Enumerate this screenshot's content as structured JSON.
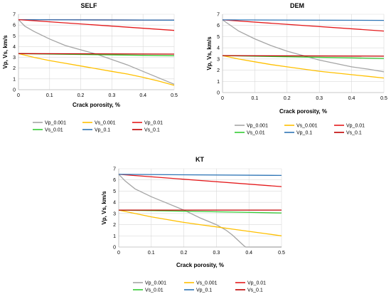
{
  "chart_data": [
    {
      "type": "line",
      "title": "SELF",
      "xlabel": "Crack porosity, %",
      "ylabel": "Vp, Vs, km/s",
      "xlim": [
        0,
        0.5
      ],
      "ylim": [
        0,
        7
      ],
      "xticks": [
        "0",
        "0.1",
        "0.2",
        "0.3",
        "0.4",
        "0.5"
      ],
      "yticks": [
        "0",
        "1",
        "2",
        "3",
        "4",
        "5",
        "6",
        "7"
      ],
      "grid": true,
      "legend": {
        "placement": "bottom",
        "columns": 3
      },
      "series": [
        {
          "name": "Vp_0.001",
          "color": "#a5a5a5",
          "x": [
            0,
            0.02,
            0.05,
            0.1,
            0.15,
            0.2,
            0.25,
            0.3,
            0.35,
            0.4,
            0.45,
            0.5
          ],
          "y": [
            6.5,
            5.9,
            5.4,
            4.7,
            4.1,
            3.7,
            3.3,
            2.8,
            2.3,
            1.7,
            1.1,
            0.5
          ]
        },
        {
          "name": "Vs_0.001",
          "color": "#ffc000",
          "x": [
            0,
            0.05,
            0.1,
            0.15,
            0.2,
            0.25,
            0.3,
            0.35,
            0.4,
            0.45,
            0.5
          ],
          "y": [
            3.35,
            3.0,
            2.7,
            2.45,
            2.2,
            1.95,
            1.7,
            1.45,
            1.15,
            0.8,
            0.4
          ]
        },
        {
          "name": "Vp_0.01",
          "color": "#e41a1c",
          "x": [
            0,
            0.5
          ],
          "y": [
            6.5,
            6.45
          ]
        },
        {
          "name": "Vs_0.01",
          "color": "#33cc33",
          "x": [
            0,
            0.5
          ],
          "y": [
            3.35,
            3.15
          ]
        },
        {
          "name": "Vp_0.1",
          "color": "#2e75b6",
          "x": [
            0,
            0.5
          ],
          "y": [
            6.5,
            6.45
          ]
        },
        {
          "name": "Vs_0.1",
          "color": "#c00000",
          "x": [
            0,
            0.5
          ],
          "y": [
            3.35,
            3.3
          ]
        },
        {
          "name": "",
          "color": "#e41a1c",
          "x": [
            0,
            0.5
          ],
          "y": [
            6.5,
            5.5
          ]
        }
      ]
    },
    {
      "type": "line",
      "title": "DEM",
      "xlabel": "Crack porosity, %",
      "ylabel": "Vp, Vs, km/s",
      "xlim": [
        0,
        0.5
      ],
      "ylim": [
        0,
        7
      ],
      "xticks": [
        "0",
        "0.1",
        "0.2",
        "0.3",
        "0.4",
        "0.5"
      ],
      "yticks": [
        "0",
        "1",
        "2",
        "3",
        "4",
        "5",
        "6",
        "7"
      ],
      "grid": true,
      "legend": {
        "placement": "bottom",
        "columns": 3
      },
      "series": [
        {
          "name": "Vp_0.001",
          "color": "#a5a5a5",
          "x": [
            0,
            0.05,
            0.1,
            0.15,
            0.2,
            0.25,
            0.3,
            0.35,
            0.4,
            0.45,
            0.5
          ],
          "y": [
            6.5,
            5.5,
            4.8,
            4.2,
            3.7,
            3.3,
            2.9,
            2.6,
            2.3,
            2.1,
            1.85
          ]
        },
        {
          "name": "Vs_0.001",
          "color": "#ffc000",
          "x": [
            0,
            0.05,
            0.1,
            0.15,
            0.2,
            0.25,
            0.3,
            0.35,
            0.4,
            0.45,
            0.5
          ],
          "y": [
            3.3,
            3.0,
            2.75,
            2.5,
            2.3,
            2.1,
            1.9,
            1.75,
            1.6,
            1.45,
            1.3
          ]
        },
        {
          "name": "Vp_0.01",
          "color": "#e41a1c",
          "x": [
            0,
            0.5
          ],
          "y": [
            6.5,
            5.5
          ]
        },
        {
          "name": "Vs_0.01",
          "color": "#33cc33",
          "x": [
            0,
            0.5
          ],
          "y": [
            3.3,
            3.05
          ]
        },
        {
          "name": "Vp_0.1",
          "color": "#2e75b6",
          "x": [
            0,
            0.5
          ],
          "y": [
            6.5,
            6.45
          ]
        },
        {
          "name": "Vs_0.1",
          "color": "#c00000",
          "x": [
            0,
            0.5
          ],
          "y": [
            3.3,
            3.25
          ]
        }
      ]
    },
    {
      "type": "line",
      "title": "KT",
      "xlabel": "Crack porosity, %",
      "ylabel": "Vp, Vs, km/s",
      "xlim": [
        0,
        0.5
      ],
      "ylim": [
        0,
        7
      ],
      "xticks": [
        "0",
        "0.1",
        "0.2",
        "0.3",
        "0.4",
        "0.5"
      ],
      "yticks": [
        "0",
        "1",
        "2",
        "3",
        "4",
        "5",
        "6",
        "7"
      ],
      "grid": true,
      "legend": {
        "placement": "bottom",
        "columns": 3
      },
      "series": [
        {
          "name": "Vp_0.001",
          "color": "#a5a5a5",
          "x": [
            0,
            0.02,
            0.05,
            0.1,
            0.15,
            0.2,
            0.25,
            0.3,
            0.33,
            0.35,
            0.37,
            0.385,
            0.39,
            0.5
          ],
          "y": [
            6.5,
            5.9,
            5.2,
            4.5,
            3.9,
            3.3,
            2.6,
            2.0,
            1.5,
            1.05,
            0.5,
            0.1,
            0,
            0
          ]
        },
        {
          "name": "Vs_0.001",
          "color": "#ffc000",
          "x": [
            0,
            0.05,
            0.1,
            0.15,
            0.2,
            0.25,
            0.3,
            0.35,
            0.4,
            0.45,
            0.5
          ],
          "y": [
            3.3,
            3.0,
            2.7,
            2.45,
            2.2,
            2.0,
            1.8,
            1.6,
            1.4,
            1.2,
            1.0
          ]
        },
        {
          "name": "Vp_0.01",
          "color": "#e41a1c",
          "x": [
            0,
            0.5
          ],
          "y": [
            6.5,
            5.4
          ]
        },
        {
          "name": "Vs_0.01",
          "color": "#33cc33",
          "x": [
            0,
            0.5
          ],
          "y": [
            3.3,
            3.05
          ]
        },
        {
          "name": "Vp_0.1",
          "color": "#2e75b6",
          "x": [
            0,
            0.5
          ],
          "y": [
            6.5,
            6.4
          ]
        },
        {
          "name": "Vs_0.1",
          "color": "#c00000",
          "x": [
            0,
            0.5
          ],
          "y": [
            3.3,
            3.3
          ]
        }
      ]
    }
  ]
}
